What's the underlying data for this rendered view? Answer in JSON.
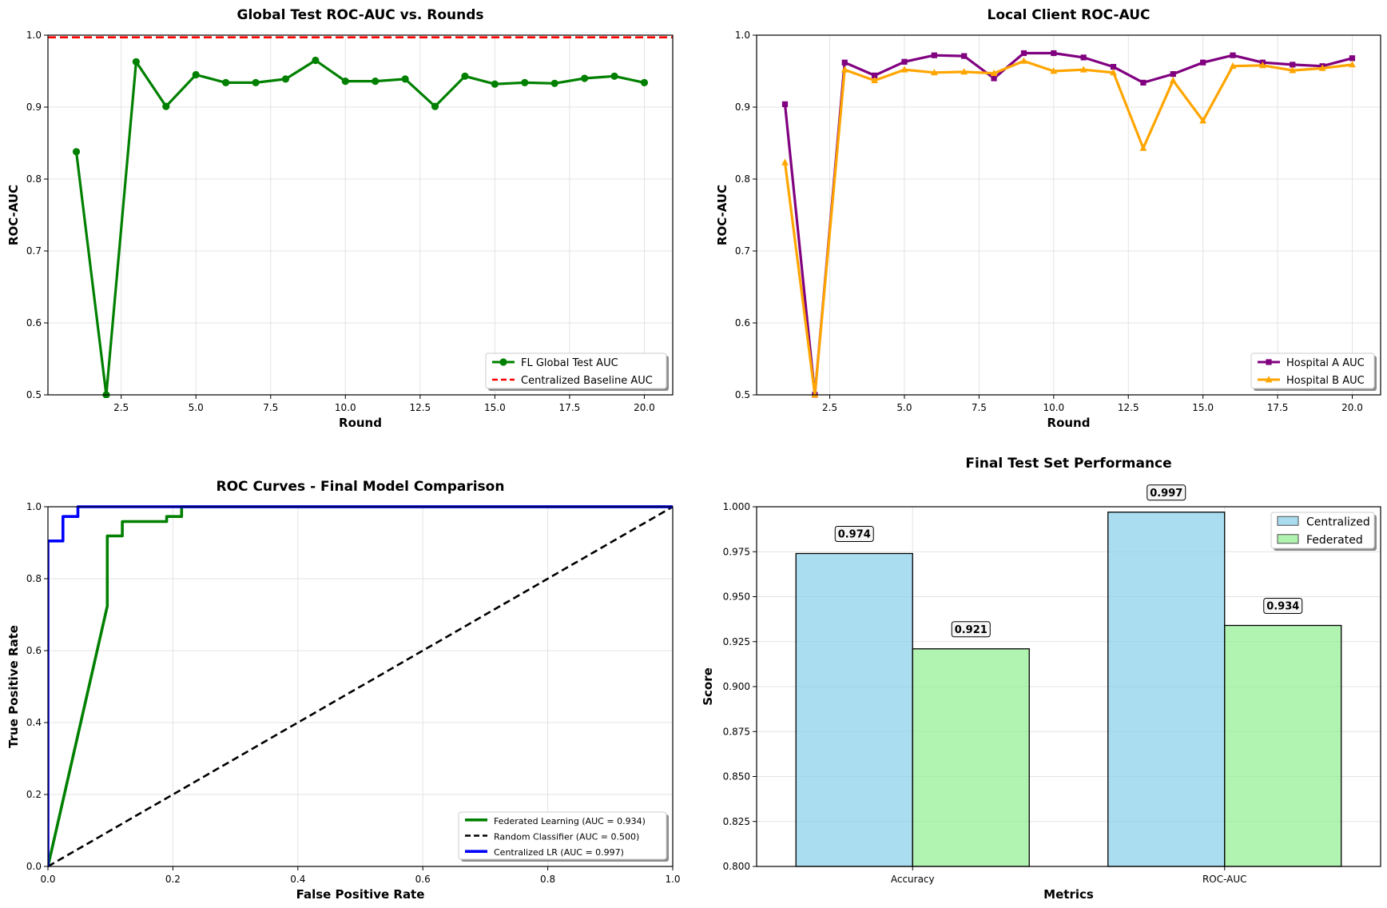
{
  "chart_data": [
    {
      "id": "global",
      "type": "line",
      "title": "Global Test ROC-AUC vs. Rounds",
      "xlabel": "Round",
      "ylabel": "ROC-AUC",
      "xlim": [
        0.05,
        20.95
      ],
      "ylim": [
        0.5,
        1.0
      ],
      "xticks": [
        "2.5",
        "5.0",
        "7.5",
        "10.0",
        "12.5",
        "15.0",
        "17.5",
        "20.0"
      ],
      "yticks": [
        "0.5",
        "0.6",
        "0.7",
        "0.8",
        "0.9",
        "1.0"
      ],
      "grid": true,
      "legend_position": "lower-right",
      "x": [
        1,
        2,
        3,
        4,
        5,
        6,
        7,
        8,
        9,
        10,
        11,
        12,
        13,
        14,
        15,
        16,
        17,
        18,
        19,
        20
      ],
      "series": [
        {
          "name": "FL Global Test AUC",
          "color": "#008000",
          "marker": "circle",
          "values": [
            0.838,
            0.5,
            0.963,
            0.901,
            0.945,
            0.934,
            0.934,
            0.939,
            0.965,
            0.936,
            0.936,
            0.939,
            0.901,
            0.943,
            0.932,
            0.934,
            0.933,
            0.94,
            0.943,
            0.934
          ]
        }
      ],
      "hlines": [
        {
          "name": "Centralized Baseline AUC",
          "color": "#ff0000",
          "y": 0.997,
          "dash": true
        }
      ]
    },
    {
      "id": "local",
      "type": "line",
      "title": "Local Client ROC-AUC",
      "xlabel": "Round",
      "ylabel": "ROC-AUC",
      "xlim": [
        0.05,
        20.95
      ],
      "ylim": [
        0.5,
        1.0
      ],
      "xticks": [
        "2.5",
        "5.0",
        "7.5",
        "10.0",
        "12.5",
        "15.0",
        "17.5",
        "20.0"
      ],
      "yticks": [
        "0.5",
        "0.6",
        "0.7",
        "0.8",
        "0.9",
        "1.0"
      ],
      "grid": true,
      "legend_position": "lower-right",
      "x": [
        1,
        2,
        3,
        4,
        5,
        6,
        7,
        8,
        9,
        10,
        11,
        12,
        13,
        14,
        15,
        16,
        17,
        18,
        19,
        20
      ],
      "series": [
        {
          "name": "Hospital A AUC",
          "color": "#800080",
          "marker": "square",
          "values": [
            0.904,
            0.5,
            0.962,
            0.944,
            0.963,
            0.972,
            0.971,
            0.94,
            0.975,
            0.975,
            0.969,
            0.956,
            0.934,
            0.946,
            0.962,
            0.972,
            0.962,
            0.959,
            0.957,
            0.968
          ]
        },
        {
          "name": "Hospital B AUC",
          "color": "#ffa500",
          "marker": "triangle",
          "values": [
            0.823,
            0.5,
            0.952,
            0.937,
            0.952,
            0.948,
            0.949,
            0.947,
            0.964,
            0.95,
            0.952,
            0.948,
            0.843,
            0.937,
            0.881,
            0.957,
            0.958,
            0.951,
            0.954,
            0.959
          ]
        }
      ]
    },
    {
      "id": "roc",
      "type": "line",
      "title": "ROC Curves - Final Model Comparison",
      "xlabel": "False Positive Rate",
      "ylabel": "True Positive Rate",
      "xlim": [
        0,
        1
      ],
      "ylim": [
        0,
        1
      ],
      "xticks": [
        "0.0",
        "0.2",
        "0.4",
        "0.6",
        "0.8",
        "1.0"
      ],
      "yticks": [
        "0.0",
        "0.2",
        "0.4",
        "0.6",
        "0.8",
        "1.0"
      ],
      "grid": true,
      "legend_position": "lower-right",
      "series": [
        {
          "name": "Federated Learning (AUC = 0.934)",
          "color": "#008000",
          "dash": false,
          "points": [
            [
              0,
              0
            ],
            [
              0.095,
              0.724
            ],
            [
              0.095,
              0.919
            ],
            [
              0.119,
              0.919
            ],
            [
              0.119,
              0.959
            ],
            [
              0.19,
              0.959
            ],
            [
              0.19,
              0.973
            ],
            [
              0.214,
              0.973
            ],
            [
              0.214,
              1.0
            ],
            [
              1.0,
              1.0
            ]
          ]
        },
        {
          "name": "Random Classifier (AUC = 0.500)",
          "color": "#000000",
          "dash": true,
          "points": [
            [
              0,
              0
            ],
            [
              1,
              1
            ]
          ]
        },
        {
          "name": "Centralized LR (AUC = 0.997)",
          "color": "#0000ff",
          "dash": false,
          "points": [
            [
              0,
              0
            ],
            [
              0,
              0.905
            ],
            [
              0.024,
              0.905
            ],
            [
              0.024,
              0.973
            ],
            [
              0.048,
              0.973
            ],
            [
              0.048,
              1.0
            ],
            [
              1.0,
              1.0
            ]
          ]
        }
      ]
    },
    {
      "id": "final",
      "type": "bar",
      "title": "Final Test Set Performance",
      "xlabel": "Metrics",
      "ylabel": "Score",
      "ylim": [
        0.8,
        1.0
      ],
      "yticks": [
        "0.800",
        "0.825",
        "0.850",
        "0.875",
        "0.900",
        "0.925",
        "0.950",
        "0.975",
        "1.000"
      ],
      "grid": true,
      "legend_position": "upper-right",
      "categories": [
        "Accuracy",
        "ROC-AUC"
      ],
      "series": [
        {
          "name": "Centralized",
          "color": "#87ceeb",
          "values": [
            0.974,
            0.997
          ],
          "labels": [
            "0.974",
            "0.997"
          ]
        },
        {
          "name": "Federated",
          "color": "#90ee90",
          "values": [
            0.921,
            0.934
          ],
          "labels": [
            "0.921",
            "0.934"
          ]
        }
      ]
    }
  ]
}
